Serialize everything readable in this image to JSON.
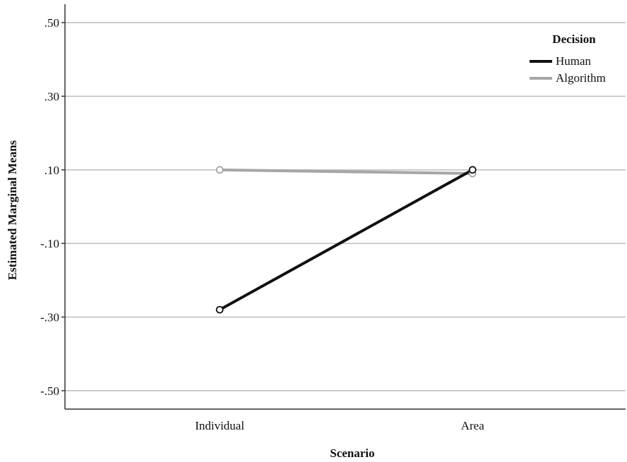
{
  "chart_data": {
    "type": "line",
    "xlabel": "Scenario",
    "ylabel": "Estimated Marginal Means",
    "categories": [
      "Individual",
      "Area"
    ],
    "ylim": [
      -0.55,
      0.55
    ],
    "y_ticks": [
      0.5,
      0.3,
      0.1,
      -0.1,
      -0.3,
      -0.5
    ],
    "y_tick_labels": [
      ".50",
      ".30",
      ".10",
      "-.10",
      "-.30",
      "-.50"
    ],
    "grid": "horizontal",
    "legend": {
      "title": "Decision",
      "placement": "top-right"
    },
    "series": [
      {
        "name": "Human",
        "values": [
          -0.28,
          0.1
        ],
        "color": "#111111"
      },
      {
        "name": "Algorithm",
        "values": [
          0.1,
          0.09
        ],
        "color": "#a6a6a6"
      }
    ]
  }
}
